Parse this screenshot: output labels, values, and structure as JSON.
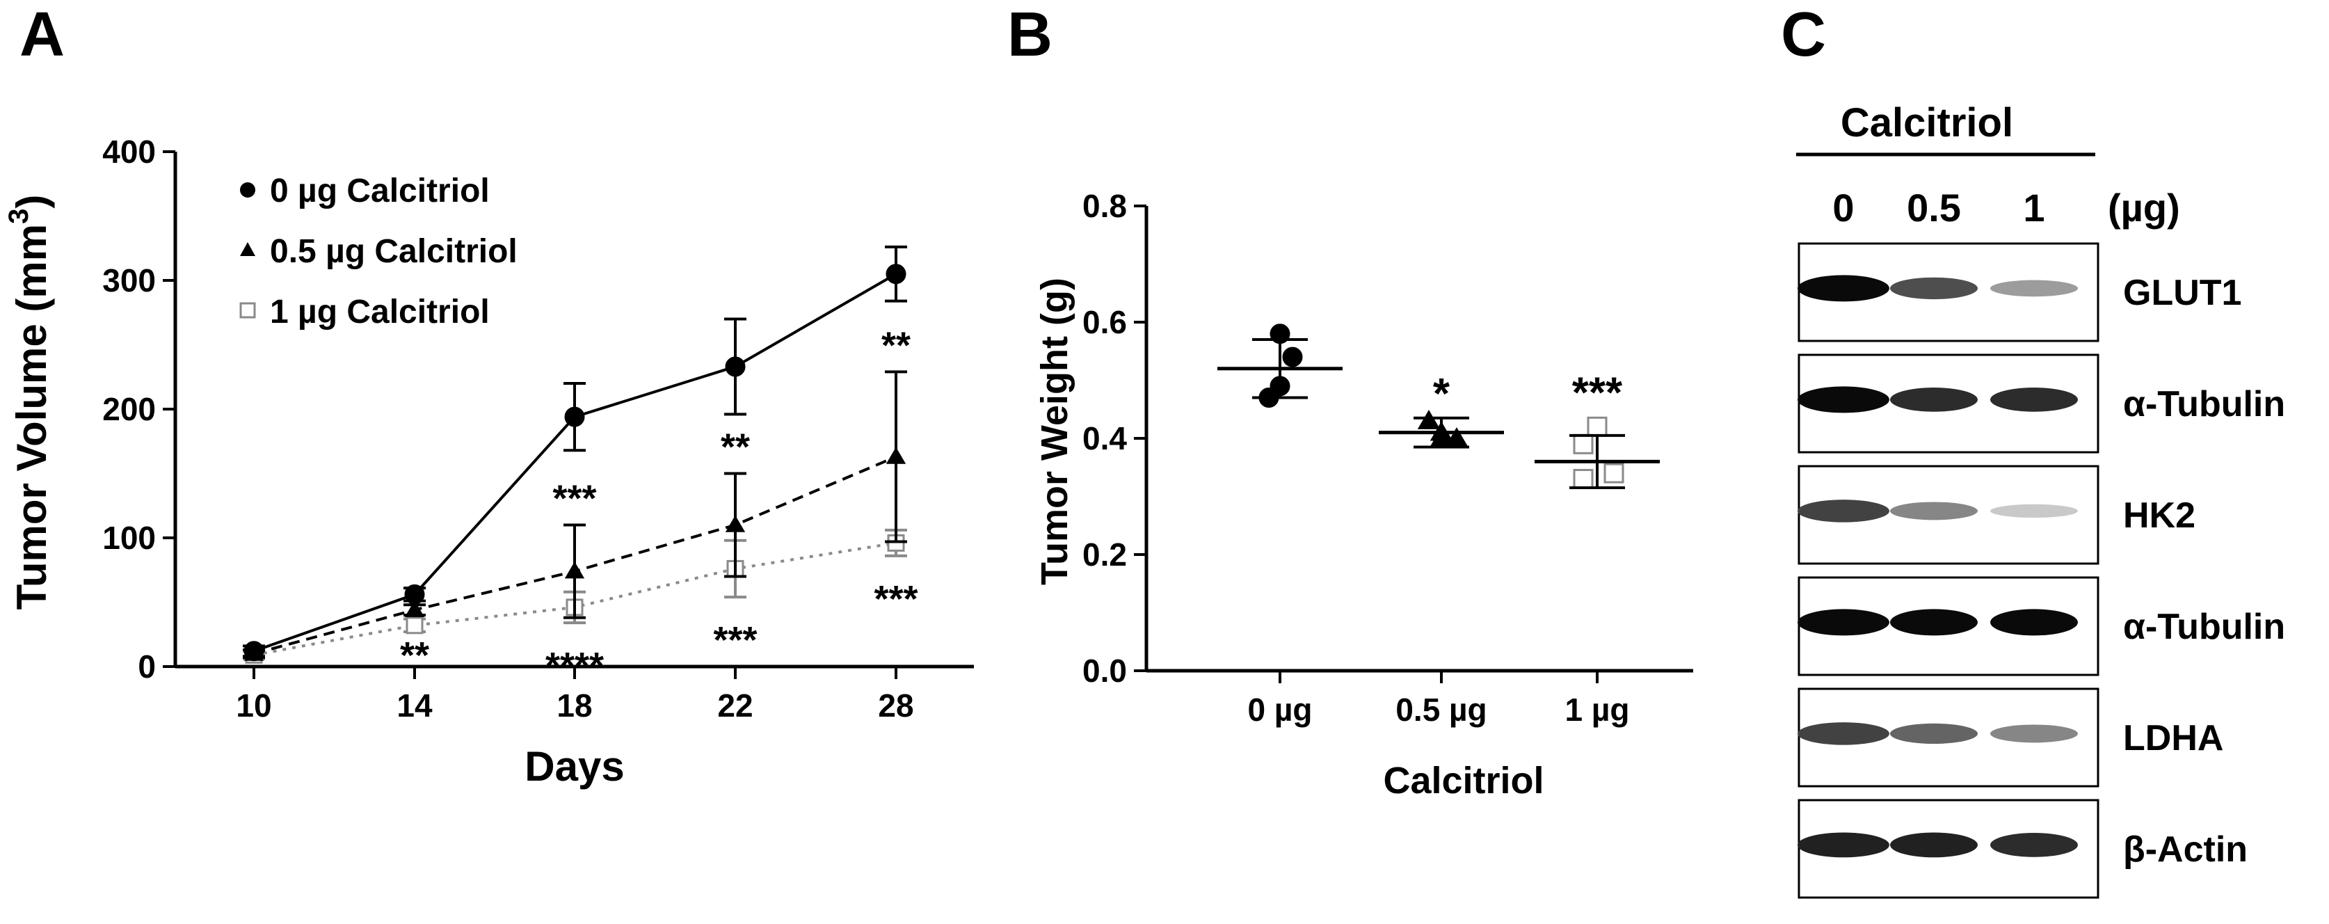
{
  "panels": {
    "a": "A",
    "b": "B",
    "c": "C"
  },
  "chart_data": [
    {
      "type": "line",
      "ylabel": "Tumor Volume (mm",
      "ylabel_sup": "3",
      "ylabel_close": ")",
      "xlabel": "Days",
      "x": [
        10,
        14,
        18,
        22,
        28
      ],
      "x_labels": [
        "10",
        "14",
        "18",
        "22",
        "28"
      ],
      "ylim": [
        0,
        400
      ],
      "yticks": [
        0,
        100,
        200,
        300,
        400
      ],
      "ytick_labels": [
        "0",
        "100",
        "200",
        "300",
        "400"
      ],
      "series": [
        {
          "name": "0 µg Calcitriol",
          "values": [
            12,
            56,
            194,
            233,
            305
          ],
          "errors": [
            4,
            5,
            26,
            37,
            21
          ],
          "style": "solid",
          "marker": "circle",
          "color": "#000000",
          "significance": [
            "",
            "",
            "",
            "",
            ""
          ]
        },
        {
          "name": "0.5 µg Calcitriol",
          "values": [
            10,
            44,
            74,
            110,
            163
          ],
          "errors": [
            3,
            4,
            36,
            40,
            66
          ],
          "style": "dashed",
          "marker": "triangle",
          "color": "#000000",
          "significance": [
            "",
            "**",
            "***",
            "**",
            "**"
          ]
        },
        {
          "name": "1 µg Calcitriol",
          "values": [
            9,
            32,
            46,
            76,
            96
          ],
          "errors": [
            3,
            5,
            12,
            22,
            10
          ],
          "style": "dotted",
          "marker": "square",
          "color": "#8a8a8a",
          "significance": [
            "",
            "",
            "****",
            "***",
            "***"
          ]
        }
      ]
    },
    {
      "type": "scatter",
      "ylabel": "Tumor Weight (g)",
      "xlabel": "Calcitriol",
      "categories": [
        "0 µg",
        "0.5 µg",
        "1 µg"
      ],
      "ylim": [
        0,
        0.8
      ],
      "yticks": [
        0,
        0.2,
        0.4,
        0.6,
        0.8
      ],
      "ytick_labels": [
        "0.0",
        "0.2",
        "0.4",
        "0.6",
        "0.8"
      ],
      "groups": [
        {
          "name": "0 µg",
          "points": [
            0.58,
            0.54,
            0.49,
            0.47
          ],
          "mean": 0.52,
          "sd": 0.05,
          "marker": "circle",
          "significance": ""
        },
        {
          "name": "0.5 µg",
          "points": [
            0.43,
            0.41,
            0.4,
            0.4
          ],
          "mean": 0.41,
          "sd": 0.025,
          "marker": "triangle",
          "significance": "*"
        },
        {
          "name": "1 µg",
          "points": [
            0.42,
            0.39,
            0.34,
            0.33
          ],
          "mean": 0.36,
          "sd": 0.045,
          "marker": "square",
          "significance": "***"
        }
      ]
    }
  ],
  "western": {
    "treatment": "Calcitriol",
    "doses": [
      "0",
      "0.5",
      "1"
    ],
    "unit": "(µg)",
    "blots": [
      {
        "label": "GLUT1",
        "intensities": [
          1.0,
          0.7,
          0.35
        ]
      },
      {
        "label": "α-Tubulin",
        "intensities": [
          1.0,
          0.85,
          0.85
        ]
      },
      {
        "label": "HK2",
        "intensities": [
          0.75,
          0.45,
          0.15
        ]
      },
      {
        "label": "α-Tubulin",
        "intensities": [
          1.0,
          1.0,
          1.0
        ]
      },
      {
        "label": "LDHA",
        "intensities": [
          0.75,
          0.6,
          0.45
        ]
      },
      {
        "label": "β-Actin",
        "intensities": [
          0.9,
          0.9,
          0.85
        ]
      }
    ]
  }
}
